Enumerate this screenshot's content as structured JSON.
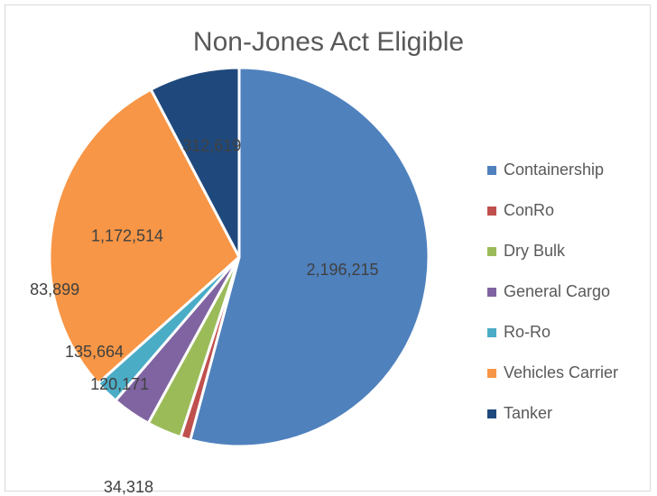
{
  "chart_data": {
    "type": "pie",
    "title": "Non-Jones Act Eligible",
    "legend_position": "right",
    "slices": [
      {
        "label": "Containership",
        "value": 2196215,
        "value_label": "2,196,215",
        "color": "#4f81bd"
      },
      {
        "label": "ConRo",
        "value": 34318,
        "value_label": "34,318",
        "color": "#c0504d"
      },
      {
        "label": "Dry Bulk",
        "value": 120171,
        "value_label": "120,171",
        "color": "#9bbb59"
      },
      {
        "label": "General Cargo",
        "value": 135664,
        "value_label": "135,664",
        "color": "#8064a2"
      },
      {
        "label": "Ro-Ro",
        "value": 83899,
        "value_label": "83,899",
        "color": "#4bacc6"
      },
      {
        "label": "Vehicles Carrier",
        "value": 1172514,
        "value_label": "1,172,514",
        "color": "#f79646"
      },
      {
        "label": "Tanker",
        "value": 312619,
        "value_label": "312,619",
        "color": "#1f497d"
      }
    ]
  }
}
